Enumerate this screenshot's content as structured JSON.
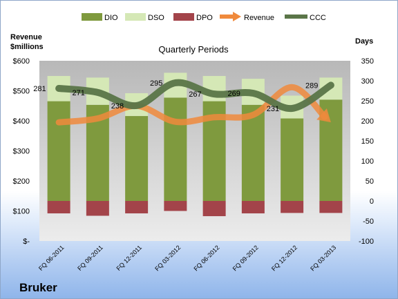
{
  "company": "Bruker",
  "chart_data": {
    "type": "bar",
    "title": "Quarterly Periods",
    "left_axis_label_line1": "Revenue",
    "left_axis_label_line2": "$millions",
    "right_axis_label": "Days",
    "categories": [
      "FQ 06-2011",
      "FQ 09-2011",
      "FQ 12-2011",
      "FQ 03-2012",
      "FQ 06-2012",
      "FQ 09-2012",
      "FQ 12-2012",
      "FQ 03-2013"
    ],
    "left_axis": {
      "min": 0,
      "max": 600,
      "ticks": [
        {
          "value": 600,
          "label": "$600"
        },
        {
          "value": 500,
          "label": "$500"
        },
        {
          "value": 400,
          "label": "$400"
        },
        {
          "value": 300,
          "label": "$300"
        },
        {
          "value": 200,
          "label": "$200"
        },
        {
          "value": 100,
          "label": "$100"
        },
        {
          "value": 0,
          "label": "$-"
        }
      ]
    },
    "right_axis": {
      "min": -100,
      "max": 350,
      "ticks": [
        350,
        300,
        250,
        200,
        150,
        100,
        50,
        0,
        -50,
        -100
      ]
    },
    "series": [
      {
        "name": "DIO",
        "kind": "stacked_bar",
        "axis": "right",
        "color": "#7f9a3e",
        "values": [
          249,
          240,
          212,
          258,
          249,
          240,
          206,
          253
        ]
      },
      {
        "name": "DSO",
        "kind": "stacked_bar",
        "axis": "right",
        "color": "#d5e8b6",
        "values": [
          63,
          68,
          57,
          62,
          63,
          65,
          57,
          55
        ]
      },
      {
        "name": "DPO",
        "kind": "negative_bar",
        "axis": "right",
        "color": "#a3444a",
        "values": [
          -31,
          -37,
          -31,
          -25,
          -38,
          -31,
          -30,
          -30
        ]
      },
      {
        "name": "Revenue",
        "kind": "line",
        "axis": "left",
        "color": "#f08a3c",
        "values": [
          395,
          408,
          450,
          397,
          412,
          420,
          512,
          395
        ]
      },
      {
        "name": "CCC",
        "kind": "line",
        "axis": "right",
        "color": "#5a7548",
        "values": [
          281,
          271,
          238,
          295,
          267,
          269,
          231,
          289
        ],
        "labels": [
          "281",
          "271",
          "238",
          "295",
          "267",
          "269",
          "231",
          "289"
        ]
      }
    ],
    "legend_position": "top",
    "grid": false
  }
}
